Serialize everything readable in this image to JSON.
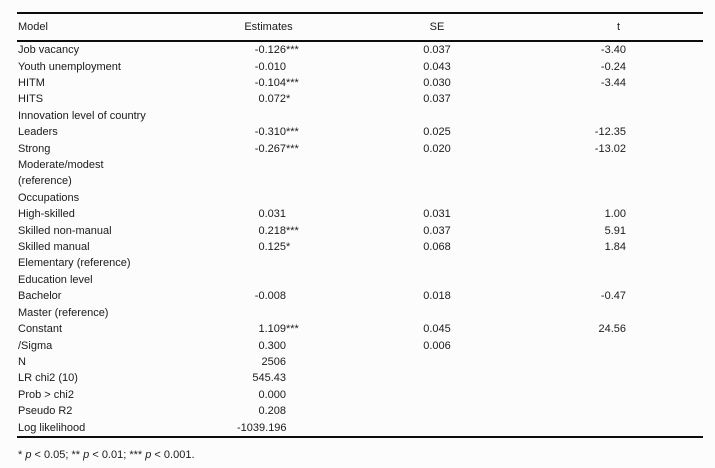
{
  "table": {
    "columns": [
      "Model",
      "Estimates",
      "SE",
      "t"
    ],
    "rows": [
      {
        "label": "Job vacancy",
        "estimate": "-0.126",
        "stars": "***",
        "se": "0.037",
        "t": "-3.40"
      },
      {
        "label": "Youth unemployment",
        "estimate": "-0.010",
        "stars": "",
        "se": "0.043",
        "t": "-0.24"
      },
      {
        "label": "HITM",
        "estimate": "-0.104",
        "stars": "***",
        "se": "0.030",
        "t": "-3.44"
      },
      {
        "label": "HITS",
        "estimate": "0.072",
        "stars": "*",
        "se": "0.037",
        "t": ""
      },
      {
        "label": "Innovation level of country",
        "estimate": "",
        "stars": "",
        "se": "",
        "t": ""
      },
      {
        "label": "Leaders",
        "estimate": "-0.310",
        "stars": "***",
        "se": "0.025",
        "t": "-12.35"
      },
      {
        "label": "Strong",
        "estimate": "-0.267",
        "stars": "***",
        "se": "0.020",
        "t": "-13.02"
      },
      {
        "label": "Moderate/modest",
        "estimate": "",
        "stars": "",
        "se": "",
        "t": ""
      },
      {
        "label": "(reference)",
        "estimate": "",
        "stars": "",
        "se": "",
        "t": ""
      },
      {
        "label": "Occupations",
        "estimate": "",
        "stars": "",
        "se": "",
        "t": ""
      },
      {
        "label": "High-skilled",
        "estimate": "0.031",
        "stars": "",
        "se": "0.031",
        "t": "1.00"
      },
      {
        "label": "Skilled non-manual",
        "estimate": "0.218",
        "stars": "***",
        "se": "0.037",
        "t": "5.91"
      },
      {
        "label": "Skilled manual",
        "estimate": "0.125",
        "stars": "*",
        "se": "0.068",
        "t": "1.84"
      },
      {
        "label": "Elementary (reference)",
        "estimate": "",
        "stars": "",
        "se": "",
        "t": ""
      },
      {
        "label": "Education level",
        "estimate": "",
        "stars": "",
        "se": "",
        "t": ""
      },
      {
        "label": "Bachelor",
        "estimate": "-0.008",
        "stars": "",
        "se": "0.018",
        "t": "-0.47"
      },
      {
        "label": "Master (reference)",
        "estimate": "",
        "stars": "",
        "se": "",
        "t": ""
      },
      {
        "label": "Constant",
        "estimate": "1.109",
        "stars": "***",
        "se": "0.045",
        "t": "24.56"
      },
      {
        "label": "/Sigma",
        "estimate": "0.300",
        "stars": "",
        "se": "0.006",
        "t": ""
      },
      {
        "label": "N",
        "estimate": "2506",
        "stars": "",
        "se": "",
        "t": ""
      },
      {
        "label": "LR chi2 (10)",
        "estimate": "545.43",
        "stars": "",
        "se": "",
        "t": ""
      },
      {
        "label": "Prob > chi2",
        "estimate": "0.000",
        "stars": "",
        "se": "",
        "t": ""
      },
      {
        "label": "Pseudo R2",
        "estimate": "0.208",
        "stars": "",
        "se": "",
        "t": ""
      },
      {
        "label": "Log likelihood",
        "estimate": "-1039.196",
        "stars": "",
        "se": "",
        "t": ""
      }
    ]
  },
  "footnote": {
    "segments": [
      {
        "text": "* ",
        "italic": false
      },
      {
        "text": "p",
        "italic": true
      },
      {
        "text": " < 0.05; ** ",
        "italic": false
      },
      {
        "text": "p",
        "italic": true
      },
      {
        "text": " < 0.01; *** ",
        "italic": false
      },
      {
        "text": "p",
        "italic": true
      },
      {
        "text": " < 0.001.",
        "italic": false
      }
    ]
  }
}
